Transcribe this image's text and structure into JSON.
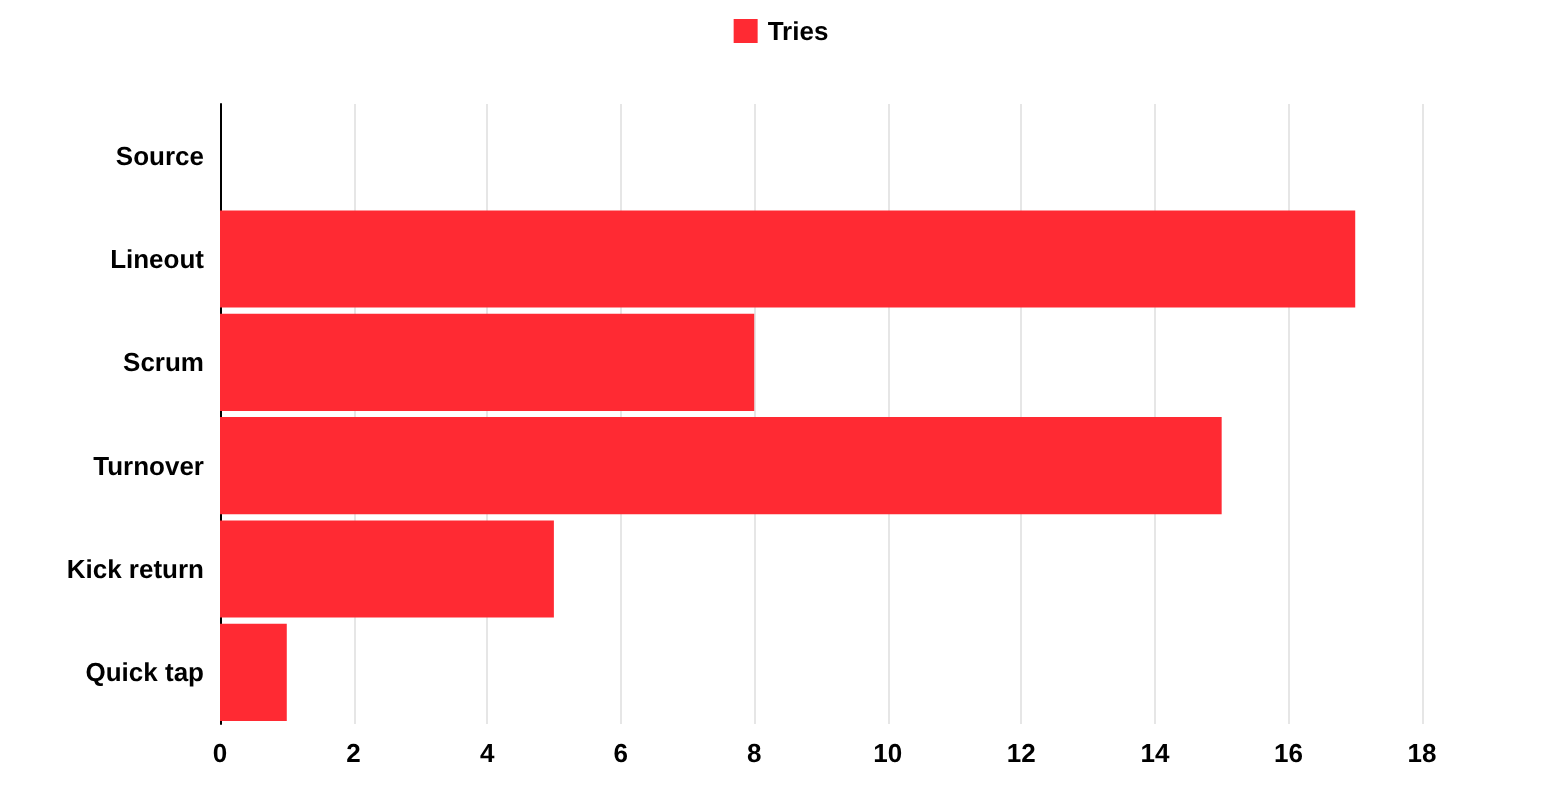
{
  "chart_data": {
    "type": "bar",
    "orientation": "horizontal",
    "categories": [
      "Source",
      "Lineout",
      "Scrum",
      "Turnover",
      "Kick return",
      "Quick tap"
    ],
    "series": [
      {
        "name": "Tries",
        "color": "#ff2a33",
        "values": [
          null,
          17,
          8,
          15,
          5,
          1
        ]
      }
    ],
    "xlim": [
      0,
      18
    ],
    "xticks": [
      0,
      2,
      4,
      6,
      8,
      10,
      12,
      14,
      16,
      18
    ],
    "grid": "x",
    "legend": "top"
  }
}
